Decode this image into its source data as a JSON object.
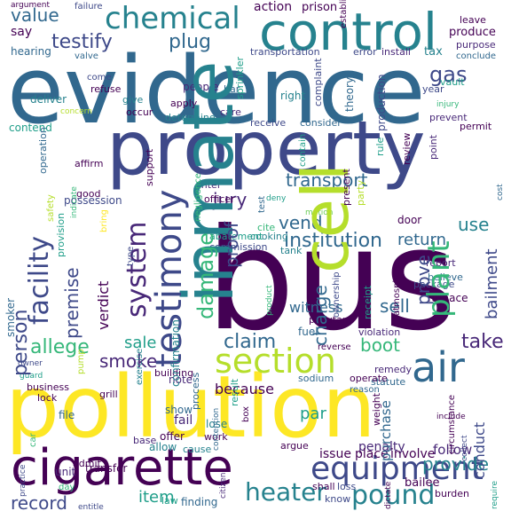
{
  "colors": {
    "background": "#ffffff",
    "dark_purple": "#440154",
    "indigo": "#482878",
    "slate_blue": "#3e4989",
    "steel_blue": "#31688e",
    "teal_blue": "#26828e",
    "teal": "#1f9e89",
    "green": "#35b779",
    "light_green": "#6ece58",
    "yellow_green": "#b5de2b",
    "yellow": "#fde725"
  },
  "words": [
    "evidence",
    "bus",
    "pollution",
    "property",
    "inmate",
    "cigarette",
    "control",
    "cell",
    "testimony",
    "facility",
    "chemical",
    "air",
    "section",
    "equipment",
    "person",
    "system",
    "damage",
    "plant",
    "heater",
    "require",
    "pound",
    "institution",
    "testify",
    "plug",
    "premise",
    "value",
    "allege",
    "smoke",
    "claim",
    "transport",
    "gas",
    "witness",
    "jury",
    "prove",
    "vend",
    "return",
    "use",
    "sell",
    "take",
    "sale",
    "boot",
    "because",
    "verdict",
    "proof",
    "charge",
    "record",
    "provide",
    "item",
    "par",
    "bailment",
    "establish",
    "argue",
    "penalty",
    "follow",
    "offer",
    "show",
    "allow",
    "fail",
    "lose",
    "purchase",
    "shall",
    "loss",
    "issue",
    "place",
    "involve",
    "unit",
    "transfer",
    "finding",
    "law",
    "know",
    "entitle",
    "day",
    "admit",
    "cause",
    "work",
    "base",
    "burden",
    "conduct",
    "good",
    "file",
    "smoker",
    "business",
    "guard",
    "action",
    "prison",
    "produce",
    "purpose",
    "conclude",
    "leave",
    "tax",
    "install",
    "error",
    "transportation",
    "hearing",
    "valve",
    "failure",
    "argument",
    "say",
    "deliver",
    "refuse",
    "come",
    "give",
    "people",
    "bar",
    "sprinkler",
    "right",
    "complaint",
    "year",
    "vault",
    "apply",
    "care",
    "receive",
    "consider",
    "theory",
    "production",
    "determine",
    "occur",
    "concern",
    "contend",
    "affirm",
    "support",
    "enter",
    "officer",
    "possession",
    "provision",
    "indicate",
    "operation",
    "prevent",
    "injury",
    "permit",
    "weight",
    "bailee",
    "remedy",
    "statute",
    "reason",
    "include",
    "confirmation",
    "note",
    "process",
    "fuel",
    "reverse",
    "violation",
    "operate",
    "sodium",
    "grill",
    "building",
    "result",
    "box",
    "test",
    "deny",
    "motion",
    "cooking",
    "cite",
    "door",
    "report",
    "present",
    "party",
    "rule",
    "pollutant",
    "review",
    "point",
    "ownership",
    "tank",
    "receipt",
    "package",
    "believe",
    "furnace",
    "product",
    "atmosphere",
    "owner",
    "pump",
    "lock",
    "car",
    "cost",
    "contain",
    "safety",
    "abatement",
    "commission",
    "exercise",
    "circumstance",
    "negligence",
    "bring",
    "type",
    "collect",
    "dictate",
    "require",
    "contention",
    "citizen",
    "practice",
    "reduction",
    "carry",
    "direction",
    "prisoner",
    "ordinance",
    "fine",
    "health",
    "area"
  ]
}
